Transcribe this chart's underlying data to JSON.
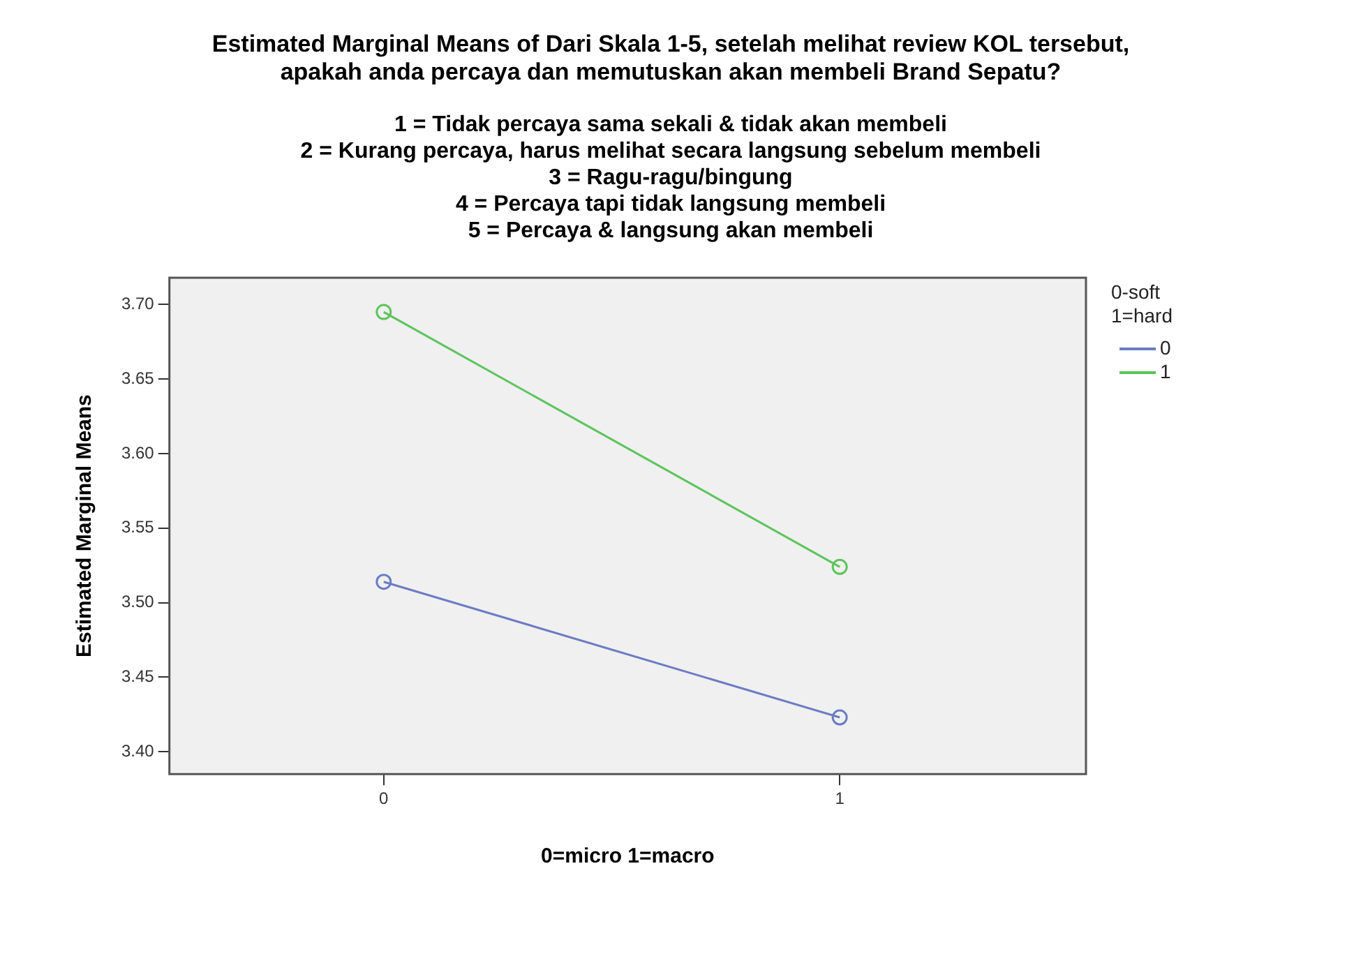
{
  "chart_data": {
    "type": "line",
    "title": "Estimated Marginal Means of Dari Skala 1-5, setelah melihat review KOL tersebut,\napakah anda percaya dan memutuskan akan membeli Brand Sepatu?",
    "subtitle": "1 = Tidak percaya sama sekali & tidak akan membeli\n2 = Kurang percaya, harus melihat secara langsung sebelum membeli\n3 = Ragu-ragu/bingung\n4 = Percaya tapi tidak langsung membeli\n5 = Percaya & langsung akan membeli",
    "xlabel": "0=micro 1=macro",
    "ylabel": "Estimated Marginal Means",
    "legend_title": "0-soft\n1=hard",
    "x": [
      0,
      1
    ],
    "series": [
      {
        "name": "0",
        "color": "#6b7cc4",
        "values": [
          3.514,
          3.423
        ]
      },
      {
        "name": "1",
        "color": "#5cc45c",
        "values": [
          3.695,
          3.524
        ]
      }
    ],
    "xlim": [
      -0.47,
      1.54
    ],
    "xticks": [
      0,
      1
    ],
    "ylim": [
      3.385,
      3.718
    ],
    "yticks": [
      {
        "value": 3.4,
        "label": "3.40"
      },
      {
        "value": 3.45,
        "label": "3.45"
      },
      {
        "value": 3.5,
        "label": "3.50"
      },
      {
        "value": 3.55,
        "label": "3.55"
      },
      {
        "value": 3.6,
        "label": "3.60"
      },
      {
        "value": 3.65,
        "label": "3.65"
      },
      {
        "value": 3.7,
        "label": "3.70"
      }
    ],
    "grid": false,
    "legend": "top right",
    "marker": "circle",
    "line_style": "solid"
  }
}
